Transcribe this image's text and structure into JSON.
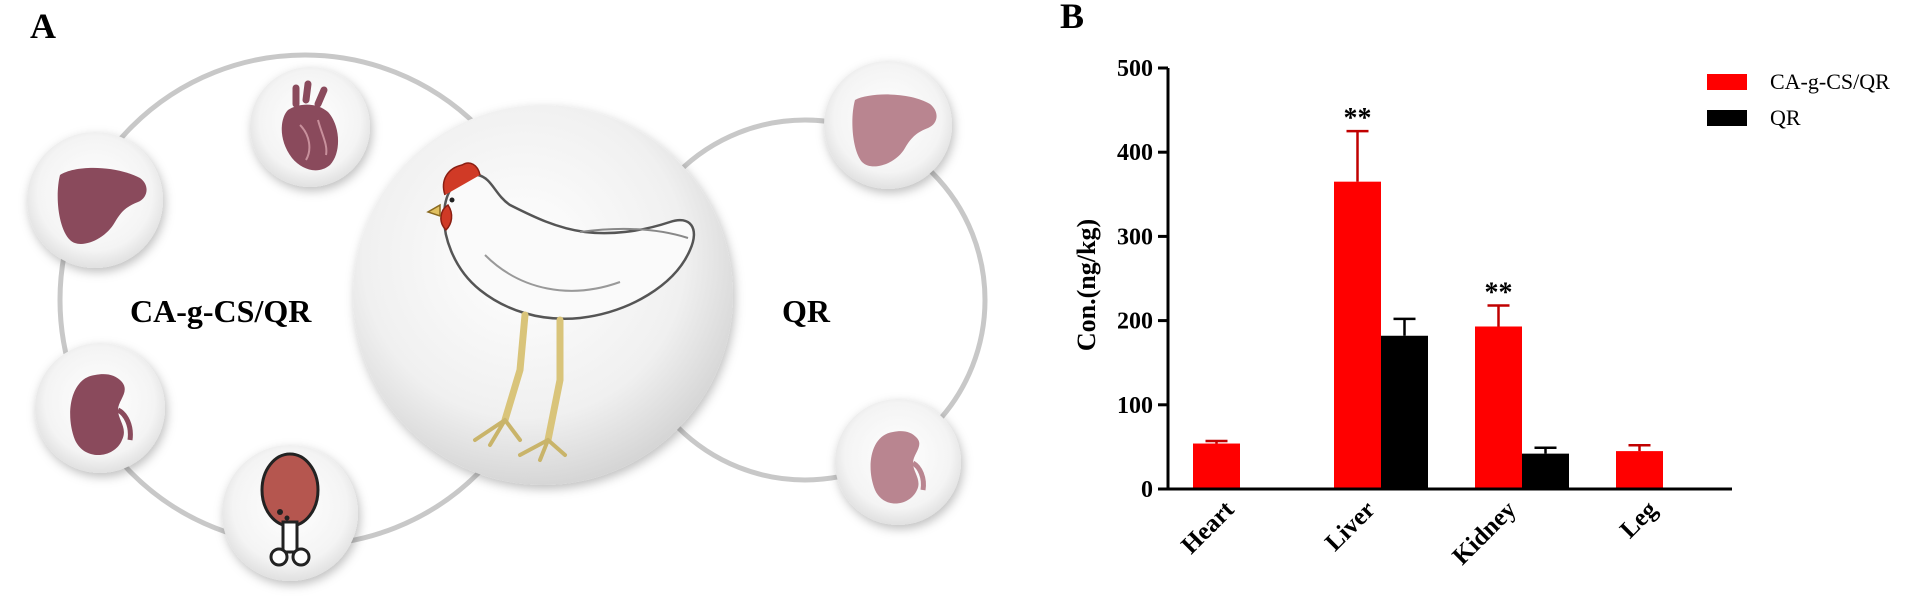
{
  "panel_a": {
    "letter": "A",
    "left_group_label": "CA-g-CS/QR",
    "right_group_label": "QR",
    "icons": [
      "heart-icon",
      "liver-icon",
      "kidney-icon",
      "drumstick-icon",
      "chicken-icon"
    ],
    "colors": {
      "organ_dark": "#8a4a5c",
      "organ_light": "#b98590",
      "meat": "#b5564f"
    }
  },
  "chart_data": {
    "type": "bar",
    "panel_letter": "B",
    "categories": [
      "Heart",
      "Liver",
      "Kidney",
      "Leg"
    ],
    "series": [
      {
        "name": "CA-g-CS/QR",
        "color": "#ff0000",
        "values": [
          54,
          365,
          193,
          45
        ],
        "errors": [
          3,
          60,
          25,
          7
        ]
      },
      {
        "name": "QR",
        "color": "#000000",
        "values": [
          null,
          182,
          42,
          0
        ],
        "errors": [
          null,
          20,
          7,
          0
        ]
      }
    ],
    "significance": [
      {
        "category": "Liver",
        "label": "**"
      },
      {
        "category": "Kidney",
        "label": "**"
      }
    ],
    "ylabel": "Con.(ng/kg)",
    "ylim": [
      0,
      500
    ],
    "yticks": [
      "0",
      "100",
      "200",
      "300",
      "400",
      "500"
    ],
    "legend_position": "top-right",
    "grid": false
  }
}
